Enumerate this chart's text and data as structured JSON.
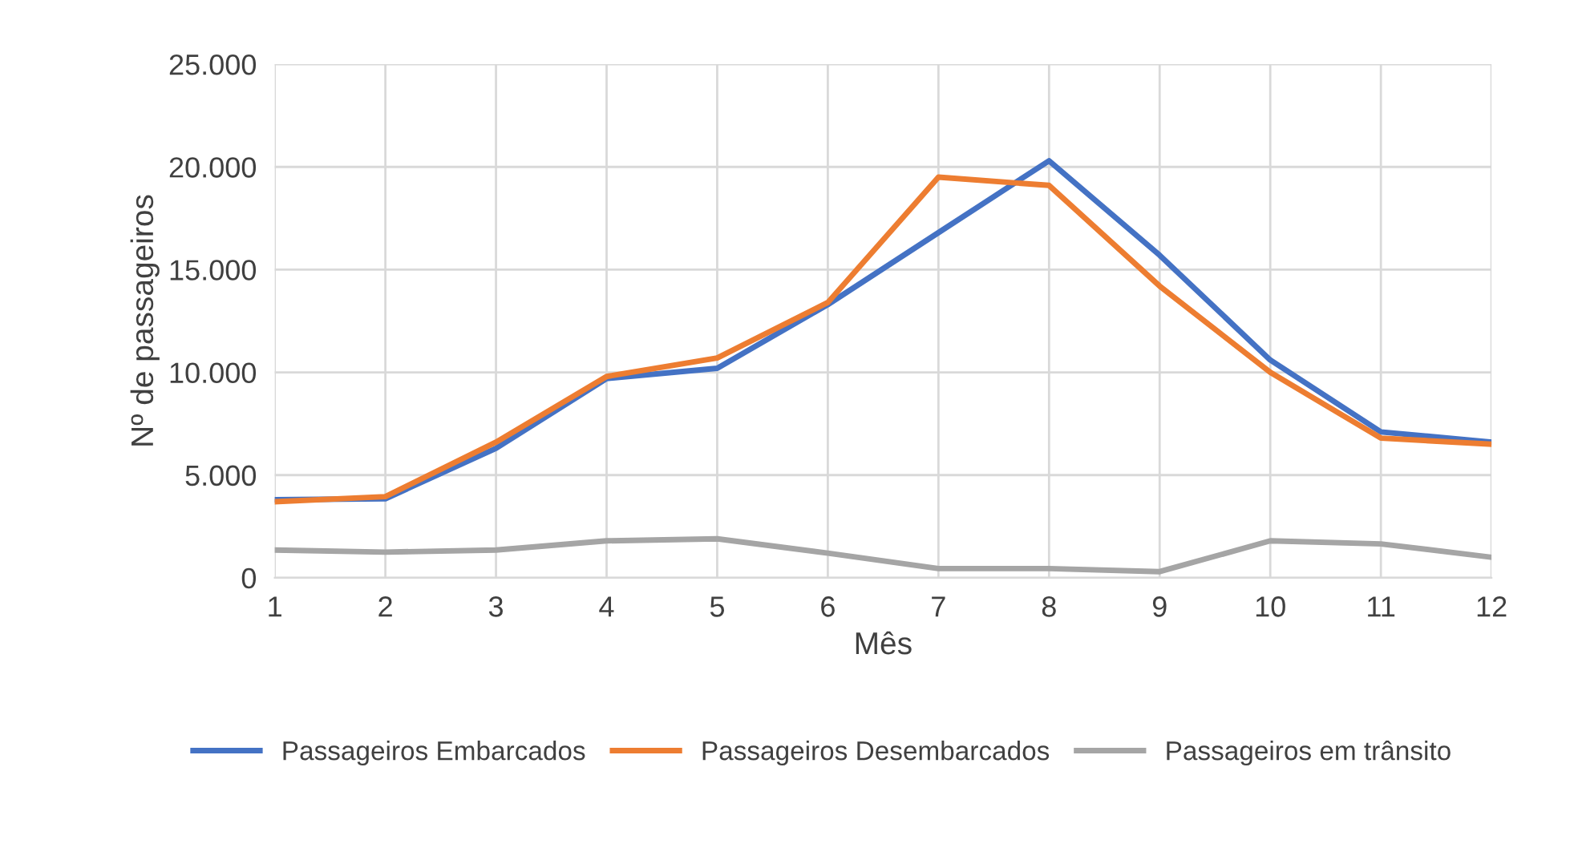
{
  "chart_data": {
    "type": "line",
    "xlabel": "Mês",
    "ylabel": "Nº de passageiros",
    "categories": [
      "1",
      "2",
      "3",
      "4",
      "5",
      "6",
      "7",
      "8",
      "9",
      "10",
      "11",
      "12"
    ],
    "series": [
      {
        "name": "Passageiros Embarcados",
        "color": "#4472c4",
        "values": [
          3800,
          3850,
          6300,
          9700,
          10200,
          13300,
          16800,
          20300,
          15700,
          10600,
          7100,
          6600
        ]
      },
      {
        "name": "Passageiros Desembarcados",
        "color": "#ed7d31",
        "values": [
          3700,
          3950,
          6600,
          9800,
          10700,
          13400,
          19500,
          19100,
          14200,
          10000,
          6800,
          6500
        ]
      },
      {
        "name": "Passageiros em trânsito",
        "color": "#a5a5a5",
        "values": [
          1350,
          1250,
          1350,
          1800,
          1900,
          1200,
          450,
          450,
          300,
          1800,
          1650,
          1000
        ]
      }
    ],
    "ylim": [
      0,
      25000
    ],
    "yticks": [
      0,
      {
        "value": 5000,
        "label": "5.000"
      },
      {
        "value": 10000,
        "label": "10.000"
      },
      {
        "value": 15000,
        "label": "15.000"
      },
      {
        "value": 20000,
        "label": "20.000"
      },
      {
        "value": 25000,
        "label": "25.000"
      }
    ],
    "grid": true,
    "legend": "bottom",
    "marker": "none",
    "line_style": "solid"
  }
}
